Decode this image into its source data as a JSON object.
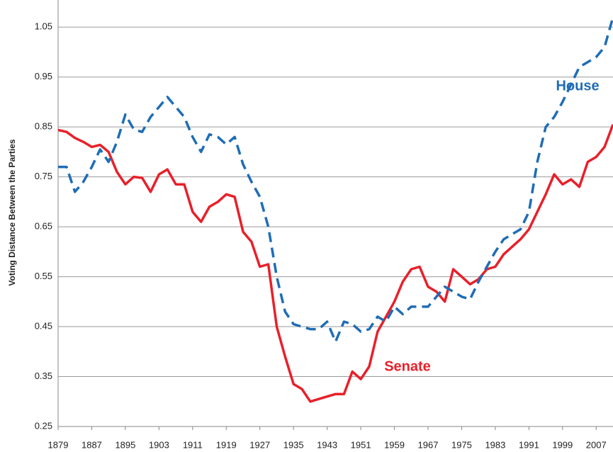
{
  "chart_data": {
    "type": "line",
    "y_label": "Voting Distance Between the Parties",
    "annotations": [
      "House",
      "Senate"
    ],
    "x": [
      1879,
      1881,
      1883,
      1885,
      1887,
      1889,
      1891,
      1893,
      1895,
      1897,
      1899,
      1901,
      1903,
      1905,
      1907,
      1909,
      1911,
      1913,
      1915,
      1917,
      1919,
      1921,
      1923,
      1925,
      1927,
      1929,
      1931,
      1933,
      1935,
      1937,
      1939,
      1941,
      1943,
      1945,
      1947,
      1949,
      1951,
      1953,
      1955,
      1957,
      1959,
      1961,
      1963,
      1965,
      1967,
      1969,
      1971,
      1973,
      1975,
      1977,
      1979,
      1981,
      1983,
      1985,
      1987,
      1989,
      1991,
      1993,
      1995,
      1997,
      1999,
      2001,
      2003,
      2005,
      2007,
      2009,
      2011
    ],
    "series": [
      {
        "name": "Senate",
        "color": "#e8202a",
        "dashed": false,
        "values": [
          0.844,
          0.84,
          0.828,
          0.82,
          0.81,
          0.814,
          0.8,
          0.76,
          0.735,
          0.75,
          0.748,
          0.72,
          0.755,
          0.765,
          0.735,
          0.735,
          0.68,
          0.66,
          0.69,
          0.7,
          0.715,
          0.71,
          0.64,
          0.62,
          0.57,
          0.575,
          0.45,
          0.39,
          0.335,
          0.325,
          0.3,
          0.305,
          0.31,
          0.315,
          0.315,
          0.36,
          0.345,
          0.37,
          0.44,
          0.47,
          0.5,
          0.54,
          0.565,
          0.57,
          0.53,
          0.52,
          0.5,
          0.565,
          0.55,
          0.535,
          0.545,
          0.565,
          0.57,
          0.595,
          0.61,
          0.625,
          0.645,
          0.68,
          0.715,
          0.755,
          0.735,
          0.745,
          0.73,
          0.78,
          0.79,
          0.81,
          0.855
        ]
      },
      {
        "name": "House",
        "color": "#1f6db5",
        "dashed": true,
        "values": [
          0.77,
          0.77,
          0.72,
          0.74,
          0.77,
          0.805,
          0.78,
          0.82,
          0.875,
          0.845,
          0.84,
          0.87,
          0.89,
          0.91,
          0.89,
          0.87,
          0.83,
          0.8,
          0.835,
          0.83,
          0.815,
          0.83,
          0.775,
          0.74,
          0.71,
          0.65,
          0.55,
          0.48,
          0.455,
          0.45,
          0.445,
          0.445,
          0.46,
          0.42,
          0.46,
          0.455,
          0.44,
          0.445,
          0.47,
          0.46,
          0.49,
          0.475,
          0.49,
          0.49,
          0.49,
          0.51,
          0.53,
          0.52,
          0.51,
          0.505,
          0.54,
          0.57,
          0.6,
          0.625,
          0.635,
          0.645,
          0.68,
          0.78,
          0.85,
          0.87,
          0.9,
          0.935,
          0.97,
          0.98,
          0.99,
          1.01,
          1.07
        ]
      }
    ],
    "xlim": [
      1879,
      2011
    ],
    "xticks": [
      1879,
      1887,
      1895,
      1903,
      1911,
      1919,
      1927,
      1935,
      1943,
      1951,
      1959,
      1967,
      1975,
      1983,
      1991,
      1999,
      2007
    ],
    "ylim": [
      0.25,
      1.1
    ],
    "yticks": [
      0.25,
      0.35,
      0.45,
      0.55,
      0.65,
      0.75,
      0.85,
      0.95,
      1.05
    ],
    "grid": true
  }
}
